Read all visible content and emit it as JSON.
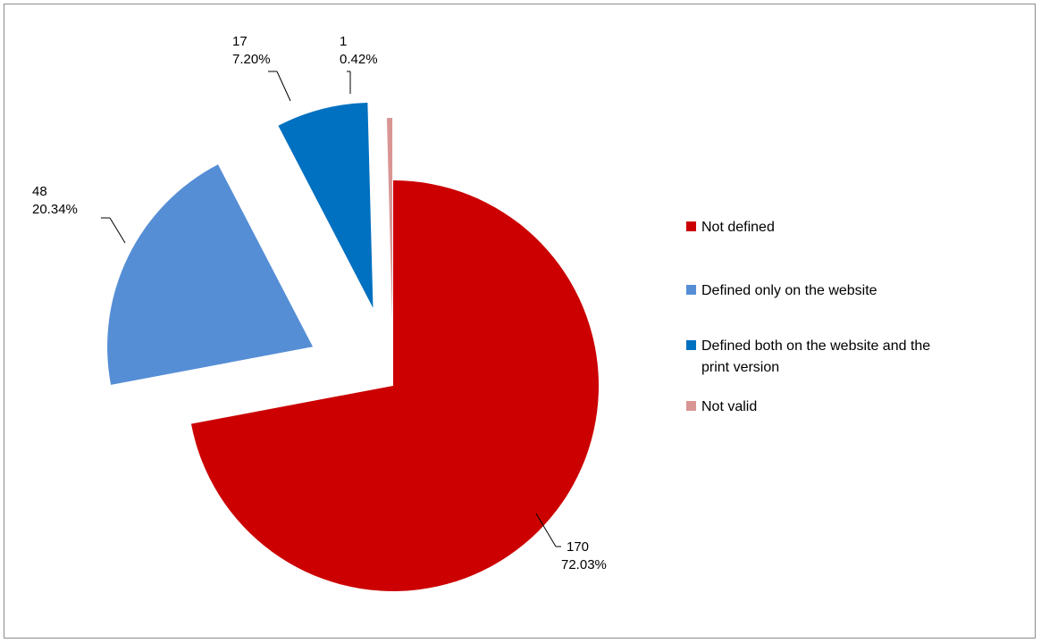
{
  "chart_data": {
    "type": "pie",
    "title": "",
    "exploded": true,
    "slices": [
      {
        "label": "Not defined",
        "value": 170,
        "percent": "72.03%",
        "color": "#cc0000"
      },
      {
        "label": "Defined only on the website",
        "value": 48,
        "percent": "20.34%",
        "color": "#558ed5"
      },
      {
        "label": "Defined both on the website and the print version",
        "value": 17,
        "percent": "7.20%",
        "color": "#0070c0"
      },
      {
        "label": "Not valid",
        "value": 1,
        "percent": "0.42%",
        "color": "#d99594"
      }
    ],
    "legend": {
      "position": "right",
      "items": [
        {
          "lines": [
            "Not defined"
          ],
          "color": "#cc0000"
        },
        {
          "lines": [
            "Defined only on the website"
          ],
          "color": "#558ed5"
        },
        {
          "lines": [
            "Defined both on the website and the",
            "print version"
          ],
          "color": "#0070c0"
        },
        {
          "lines": [
            "Not valid"
          ],
          "color": "#d99594"
        }
      ]
    }
  }
}
